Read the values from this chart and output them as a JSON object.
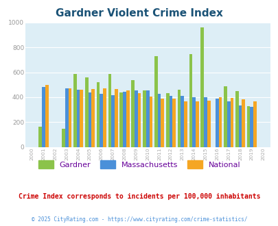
{
  "title": "Gardner Violent Crime Index",
  "title_color": "#1a5276",
  "years": [
    2000,
    2001,
    2002,
    2003,
    2004,
    2005,
    2006,
    2007,
    2008,
    2009,
    2010,
    2011,
    2012,
    2013,
    2014,
    2015,
    2016,
    2017,
    2018,
    2019,
    2020
  ],
  "gardner": [
    0,
    160,
    0,
    148,
    585,
    557,
    522,
    585,
    440,
    535,
    455,
    730,
    435,
    460,
    745,
    960,
    0,
    485,
    447,
    330,
    0
  ],
  "massachusetts": [
    0,
    483,
    0,
    472,
    460,
    437,
    425,
    418,
    443,
    452,
    455,
    425,
    408,
    408,
    398,
    398,
    388,
    368,
    335,
    322,
    0
  ],
  "national": [
    0,
    500,
    0,
    472,
    462,
    463,
    470,
    465,
    457,
    430,
    404,
    387,
    387,
    368,
    366,
    373,
    398,
    394,
    382,
    367,
    0
  ],
  "gardner_color": "#8bc34a",
  "massachusetts_color": "#4a90d9",
  "national_color": "#f5a623",
  "bg_color": "#ddeef6",
  "ylim": [
    0,
    1000
  ],
  "yticks": [
    0,
    200,
    400,
    600,
    800,
    1000
  ],
  "subtitle": "Crime Index corresponds to incidents per 100,000 inhabitants",
  "footer": "© 2025 CityRating.com - https://www.cityrating.com/crime-statistics/",
  "subtitle_color": "#cc0000",
  "footer_color": "#4a90d9",
  "bar_width": 0.28
}
